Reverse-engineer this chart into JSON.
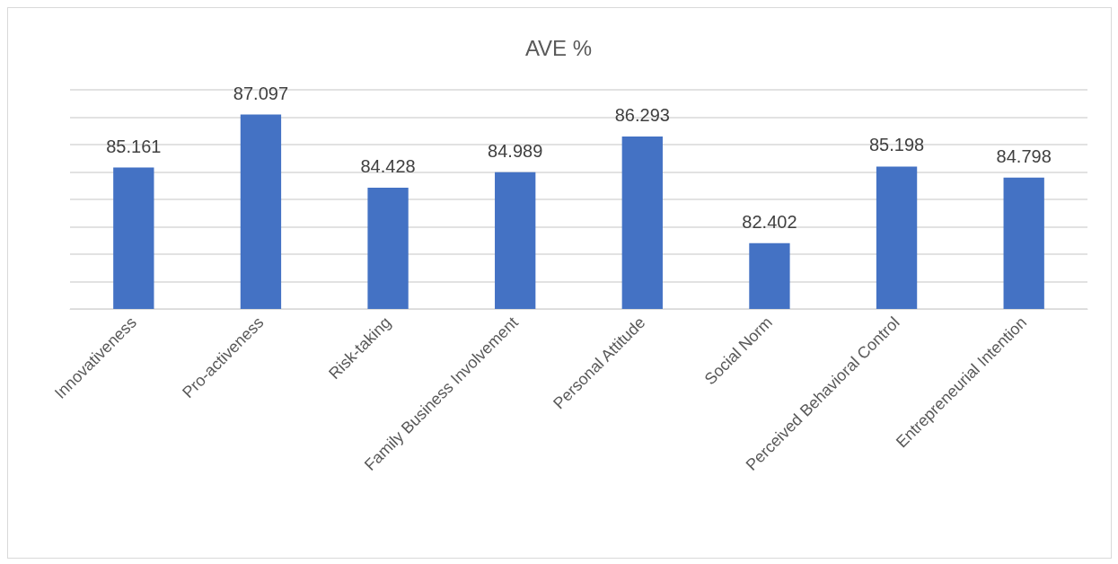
{
  "chart_data": {
    "type": "bar",
    "title": "AVE %",
    "categories": [
      "Innovativeness",
      "Pro-activeness",
      "Risk-taking",
      "Family Business Involvement",
      "Personal Attitude",
      "Social Norm",
      "Perceived Behavioral Control",
      "Entrepreneurial Intention"
    ],
    "values": [
      85.161,
      87.097,
      84.428,
      84.989,
      86.293,
      82.402,
      85.198,
      84.798
    ],
    "color": "#4472c4",
    "ylim": [
      80,
      88
    ],
    "yticks": [
      {
        "value": 80,
        "label": null
      },
      {
        "value": 81,
        "label": null
      },
      {
        "value": 82,
        "label": null
      },
      {
        "value": 83,
        "label": null
      },
      {
        "value": 84,
        "label": null
      },
      {
        "value": 85,
        "label": null
      },
      {
        "value": 86,
        "label": null
      },
      {
        "value": 87,
        "label": null
      },
      {
        "value": 88,
        "label": null
      }
    ],
    "grid": "y",
    "tick_labels": "x",
    "data_labels": true
  }
}
